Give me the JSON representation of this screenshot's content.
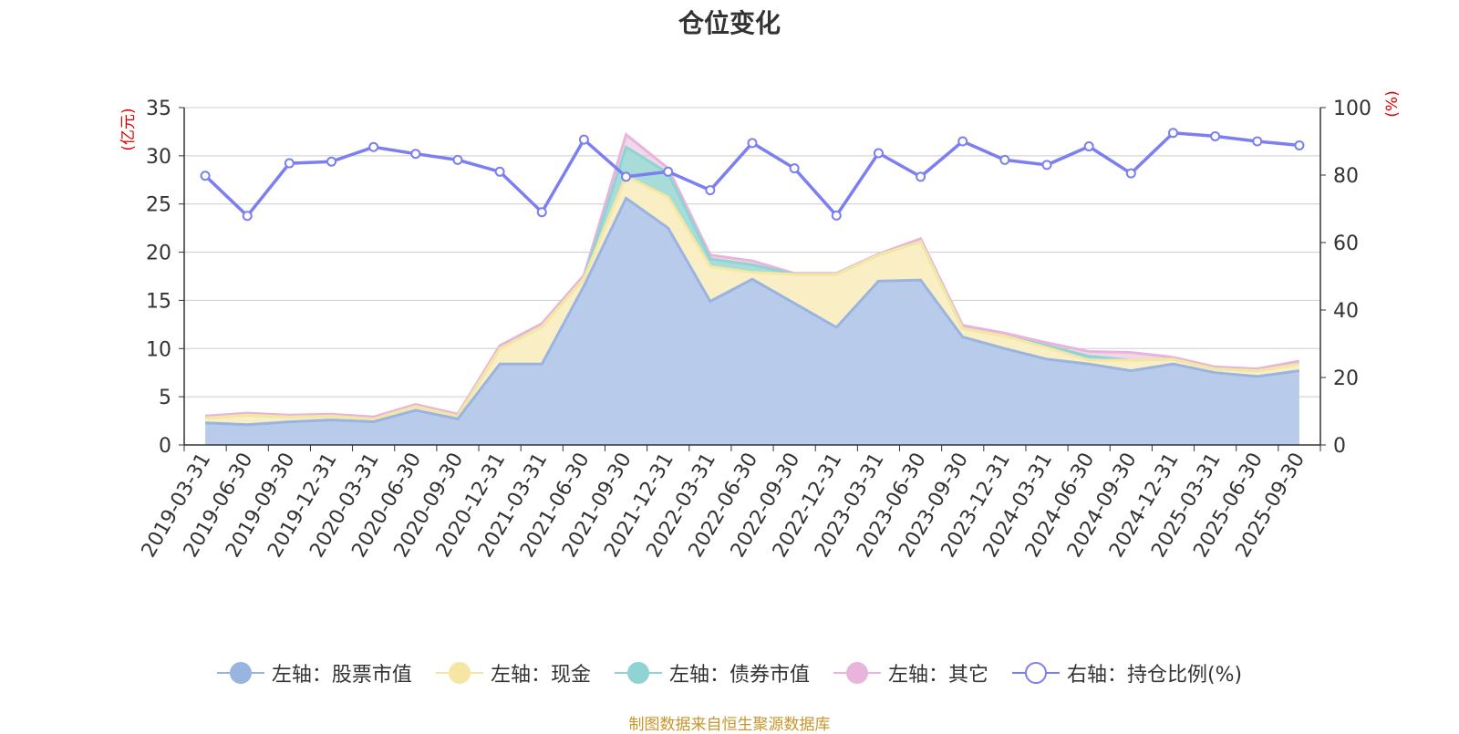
{
  "title": "仓位变化",
  "source_note": "制图数据来自恒生聚源数据库",
  "colors": {
    "stock": "#9ab4e0",
    "stock_fill": "#b8cbea",
    "cash": "#f5e6a3",
    "cash_fill": "#faefc4",
    "bond": "#8fd3d3",
    "bond_fill": "#a8dcd8",
    "other": "#e8b4db",
    "ratio": "#7b7ff0",
    "axis": "#333333",
    "grid": "#cccccc",
    "unit": "#e00000"
  },
  "legend": [
    {
      "key": "stock",
      "label": "左轴：股票市值",
      "color": "#9ab4e0",
      "hollow": false
    },
    {
      "key": "cash",
      "label": "左轴：现金",
      "color": "#f5e6a3",
      "hollow": false
    },
    {
      "key": "bond",
      "label": "左轴：债券市值",
      "color": "#8fd3d3",
      "hollow": false
    },
    {
      "key": "other",
      "label": "左轴：其它",
      "color": "#e8b4db",
      "hollow": false
    },
    {
      "key": "ratio",
      "label": "右轴：持仓比例(%)",
      "color": "#7b7ff0",
      "hollow": true
    }
  ],
  "chart_data": {
    "type": "area",
    "title": "仓位变化",
    "categories": [
      "2019-03-31",
      "2019-06-30",
      "2019-09-30",
      "2019-12-31",
      "2020-03-31",
      "2020-06-30",
      "2020-09-30",
      "2020-12-31",
      "2021-03-31",
      "2021-06-30",
      "2021-09-30",
      "2021-12-31",
      "2022-03-31",
      "2022-06-30",
      "2022-09-30",
      "2022-12-31",
      "2023-03-31",
      "2023-06-30",
      "2023-09-30",
      "2023-12-31",
      "2024-03-31",
      "2024-06-30",
      "2024-09-30",
      "2024-12-31",
      "2025-03-31",
      "2025-06-30",
      "2025-09-30"
    ],
    "y_left": {
      "label": "(亿元)",
      "min": 0,
      "max": 35,
      "ticks": [
        0,
        5,
        10,
        15,
        20,
        25,
        30,
        35
      ]
    },
    "y_right": {
      "label": "(%)",
      "min": 0,
      "max": 100,
      "ticks": [
        0,
        20,
        40,
        60,
        80,
        100
      ]
    },
    "stacked": true,
    "series": [
      {
        "name": "左轴：股票市值",
        "key": "stock",
        "axis": "left",
        "values": [
          2.3,
          2.1,
          2.4,
          2.6,
          2.4,
          3.6,
          2.7,
          8.4,
          8.4,
          16.5,
          25.6,
          22.5,
          14.9,
          17.2,
          14.7,
          12.2,
          17.0,
          17.1,
          11.2,
          10.0,
          8.9,
          8.4,
          7.7,
          8.4,
          7.5,
          7.1,
          7.7
        ]
      },
      {
        "name": "左轴：现金",
        "key": "cash",
        "axis": "left",
        "values": [
          0.5,
          1.0,
          0.5,
          0.4,
          0.3,
          0.4,
          0.3,
          1.6,
          3.9,
          0.8,
          2.3,
          3.2,
          3.6,
          0.7,
          3.0,
          5.5,
          2.7,
          4.0,
          0.9,
          1.3,
          1.2,
          0.4,
          1.1,
          0.5,
          0.4,
          0.6,
          0.7
        ]
      },
      {
        "name": "左轴：债券市值",
        "key": "bond",
        "axis": "left",
        "values": [
          0,
          0,
          0,
          0,
          0,
          0,
          0,
          0,
          0,
          0,
          3.0,
          2.5,
          0.8,
          0.8,
          0,
          0,
          0,
          0,
          0,
          0,
          0.2,
          0.4,
          0,
          0,
          0,
          0,
          0
        ]
      },
      {
        "name": "左轴：其它",
        "key": "other",
        "axis": "left",
        "values": [
          0.2,
          0.2,
          0.2,
          0.2,
          0.2,
          0.2,
          0.2,
          0.3,
          0.3,
          0.3,
          1.3,
          0.5,
          0.4,
          0.4,
          0.1,
          0.1,
          0.1,
          0.3,
          0.3,
          0.3,
          0.3,
          0.5,
          0.8,
          0.2,
          0.2,
          0.2,
          0.3
        ]
      },
      {
        "name": "右轴：持仓比例(%)",
        "key": "ratio",
        "axis": "right",
        "values": [
          79.8,
          67.9,
          83.5,
          84.0,
          88.3,
          86.3,
          84.5,
          81.0,
          69.0,
          90.5,
          79.5,
          81.0,
          75.5,
          89.5,
          82.0,
          68.0,
          86.5,
          79.5,
          90.0,
          84.5,
          83.0,
          88.5,
          80.5,
          92.5,
          91.5,
          90.0,
          88.8
        ]
      }
    ]
  }
}
